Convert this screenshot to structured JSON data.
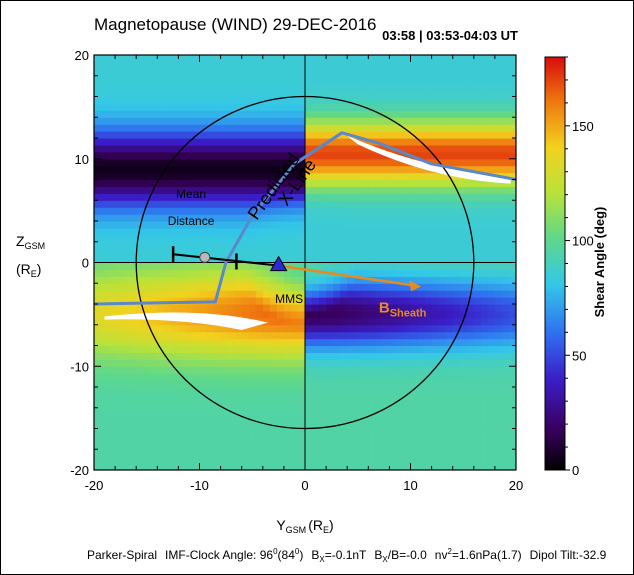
{
  "chart_data": {
    "type": "heatmap",
    "title": "Magnetopause (WIND) 29-DEC-2016",
    "time_label": "03:58 | 03:53-04:03 UT",
    "xlabel_main": "Y",
    "xlabel_sub": "GSM",
    "xlabel_unit": "(R",
    "xlabel_unit_sub": "E",
    "xlabel_unit_close": ")",
    "ylabel_main": "Z",
    "ylabel_sub": "GSM",
    "ylabel_unit": "(R",
    "ylabel_unit_sub": "E",
    "ylabel_unit_close": ")",
    "xlim": [
      -20,
      20
    ],
    "ylim": [
      -20,
      20
    ],
    "x_ticks": [
      -20,
      -10,
      0,
      10,
      20
    ],
    "y_ticks": [
      -20,
      -10,
      0,
      10,
      20
    ],
    "x_tick_labels": [
      "-20",
      "-10",
      "0",
      "10",
      "20"
    ],
    "y_tick_labels": [
      "-20",
      "-10",
      "0",
      "10",
      "20"
    ],
    "colorbar": {
      "label": "Shear Angle (deg)",
      "range": [
        0,
        180
      ],
      "ticks": [
        0,
        50,
        100,
        150
      ],
      "tick_labels": [
        "0",
        "50",
        "100",
        "150"
      ]
    },
    "magnetopause_radius": 16,
    "xline_label_1": "Predicted",
    "xline_label_2": "X-Line",
    "xline_points": [
      [
        -20,
        -4
      ],
      [
        -8.5,
        -3.8
      ],
      [
        -7.5,
        0
      ],
      [
        -5,
        4.5
      ],
      [
        -1,
        9.5
      ],
      [
        3.5,
        12.5
      ],
      [
        7,
        11.5
      ],
      [
        12,
        9.5
      ],
      [
        20,
        8
      ]
    ],
    "mean_distance_label_1": "Mean",
    "mean_distance_label_2": "Distance",
    "mean_distance_point": [
      -9.5,
      0.5
    ],
    "mean_distance_bar": [
      [
        -12.5,
        0.8
      ],
      [
        -6.5,
        0.1
      ]
    ],
    "mms_label": "MMS",
    "mms_point": [
      -2.5,
      -0.3
    ],
    "b_sheath_label": "B",
    "b_sheath_sub": "Sheath",
    "b_sheath_arrow": [
      [
        -2.5,
        -0.3
      ],
      [
        11,
        -2.3
      ]
    ],
    "footer": {
      "model": "Parker-Spiral",
      "imf_clock": "IMF-Clock Angle: 96",
      "imf_clock_sup": "0",
      "imf_clock_paren": "(84",
      "imf_clock_paren_sup": "0",
      "imf_clock_paren_close": ")",
      "bx": "B",
      "bx_sub": "X",
      "bx_val": "=-0.1nT",
      "bxb": "B",
      "bxb_sub": "X",
      "bxb_val": "/B=-0.0",
      "nv": "nv",
      "nv_sup": "2",
      "nv_val": "=1.6nPa(1.7)",
      "tilt": "Dipol Tilt:-32.9"
    }
  }
}
